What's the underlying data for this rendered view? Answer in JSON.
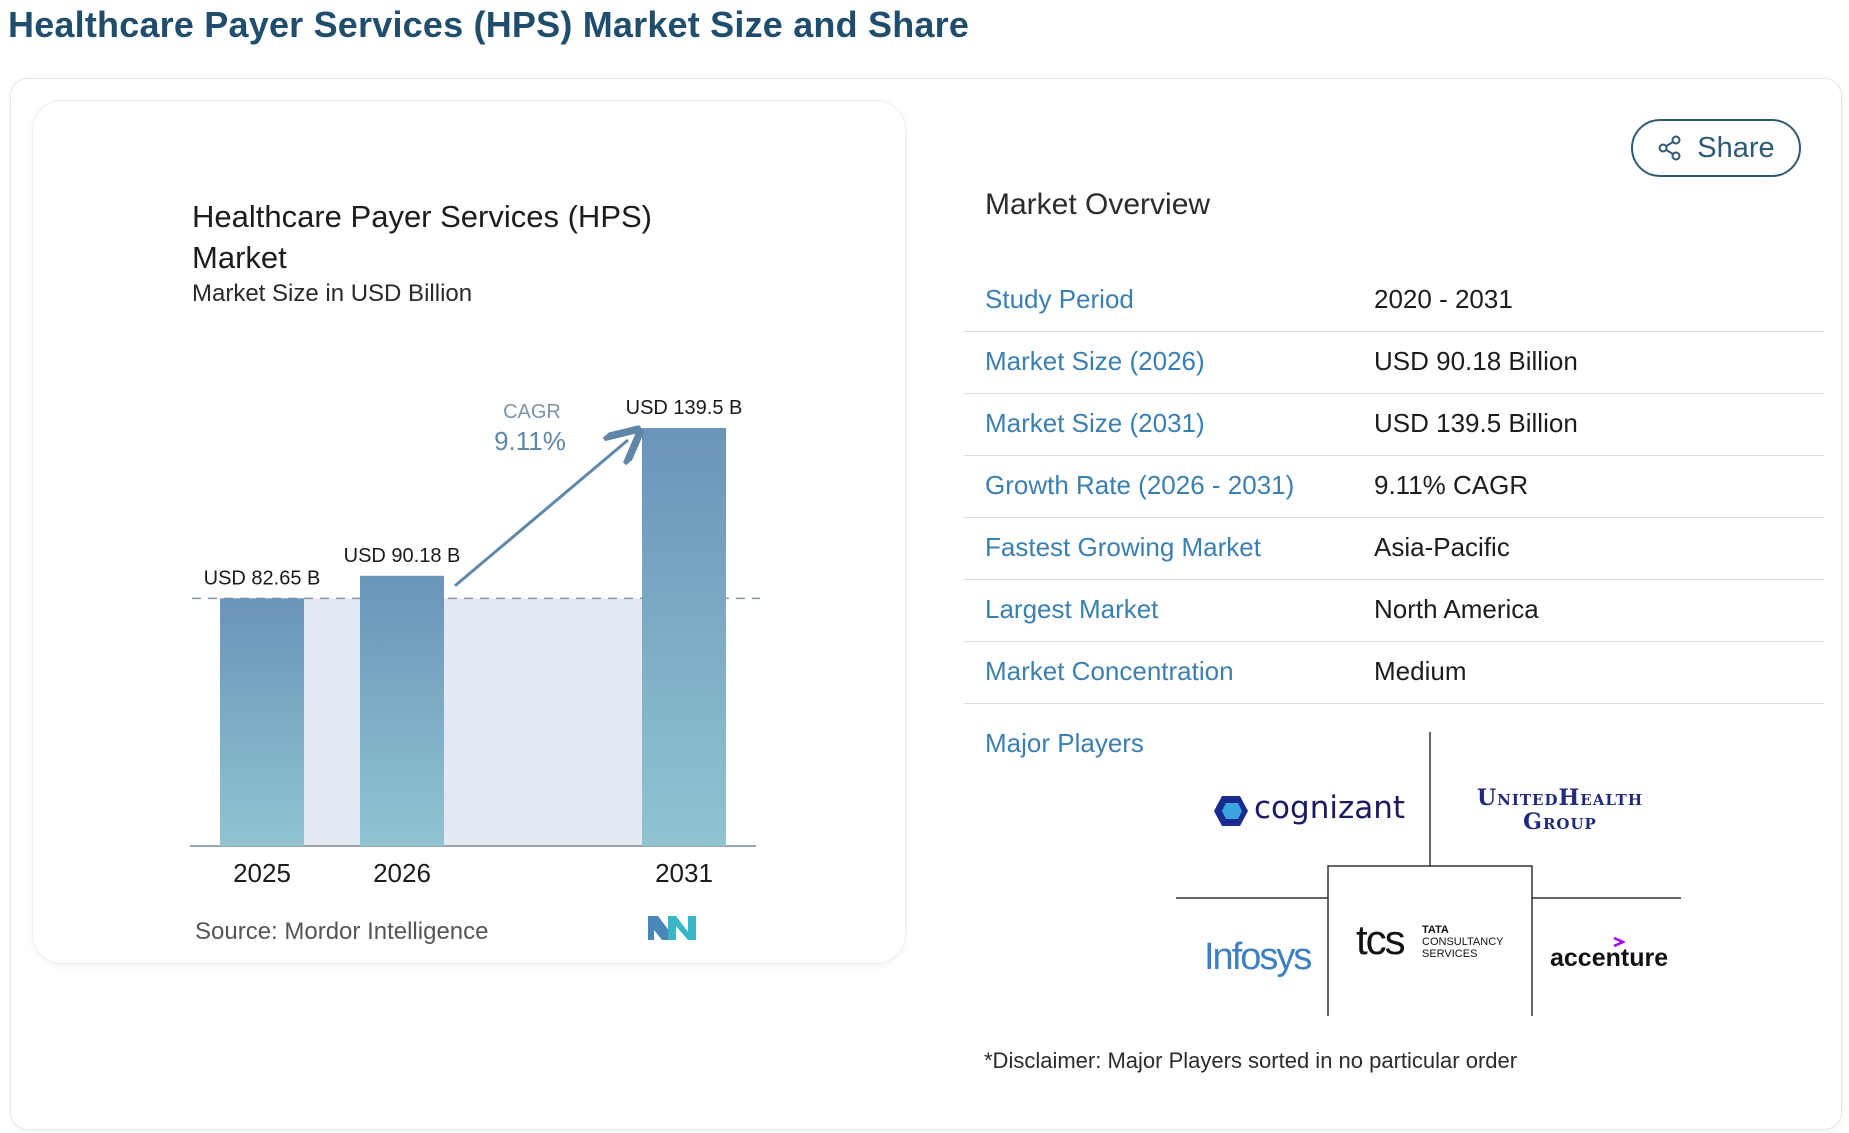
{
  "page": {
    "title": "Healthcare Payer Services (HPS) Market Size and Share"
  },
  "chart_card": {
    "title": "Healthcare Payer Services (HPS) Market",
    "subtitle": "Market Size in USD Billion",
    "source": "Source:  Mordor Intelligence",
    "cagr_label": "CAGR",
    "cagr_value": "9.11%",
    "colors": {
      "bar_top": "#6b94b9",
      "bar_bottom": "#90c4d1",
      "band": "#e3e9f2",
      "arrow": "#5f88a8"
    }
  },
  "chart_data": {
    "type": "bar",
    "categories": [
      "2025",
      "2026",
      "2031"
    ],
    "values": [
      82.65,
      90.18,
      139.5
    ],
    "data_labels": [
      "USD 82.65 B",
      "USD 90.18 B",
      "USD 139.5 B"
    ],
    "title": "Healthcare Payer Services (HPS) Market",
    "subtitle": "Market Size in USD Billion",
    "ylim": [
      0,
      139.5
    ],
    "grid": false
  },
  "share": {
    "label": "Share",
    "icon": "share-icon"
  },
  "overview": {
    "title": "Market Overview",
    "rows": [
      {
        "key": "Study Period",
        "value": "2020 - 2031"
      },
      {
        "key": "Market Size (2026)",
        "value": "USD 90.18 Billion"
      },
      {
        "key": "Market Size (2031)",
        "value": "USD 139.5 Billion"
      },
      {
        "key": "Growth Rate (2026 - 2031)",
        "value": "9.11% CAGR"
      },
      {
        "key": "Fastest Growing Market",
        "value": "Asia-Pacific"
      },
      {
        "key": "Largest Market",
        "value": "North America"
      },
      {
        "key": "Market Concentration",
        "value": "Medium"
      }
    ]
  },
  "players": {
    "label": "Major Players",
    "logos": {
      "cognizant": "cognizant",
      "unitedhealth_line1": "UnitedHealth",
      "unitedhealth_line2": "Group",
      "infosys": "Infosys",
      "tcs": "tcs",
      "tcs_line1": "TATA",
      "tcs_line2": "CONSULTANCY",
      "tcs_line3": "SERVICES",
      "accenture": "accenture"
    },
    "disclaimer": "*Disclaimer: Major Players sorted in no particular order"
  }
}
